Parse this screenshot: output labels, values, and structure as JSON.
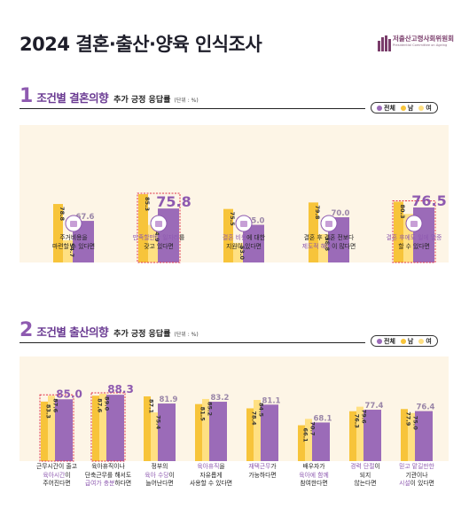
{
  "page_title": "2024 결혼·출산·양육 인식조사",
  "logo": {
    "org": "저출산고령사회위원회",
    "sub": "Presidential Committee on Ageing Society and Population Policy"
  },
  "colors": {
    "all": "#9b6bb8",
    "male": "#f7c43a",
    "female": "#ffe082",
    "band": "#fdf5e6",
    "accent": "#8e5ab0"
  },
  "legend": {
    "all": "전체",
    "male": "남",
    "female": "여"
  },
  "sections": [
    {
      "num": "1",
      "main": "조건별 결혼의향",
      "sub": "추가 긍정 응답률",
      "unit": "(단위 : %)",
      "captions": [
        {
          "icon": "house-icon",
          "lines": [
            [
              "",
              "주거비용을"
            ],
            [
              "",
              "마련할 수 있다면"
            ]
          ],
          "hl_line": 0
        },
        {
          "icon": "briefcase-icon",
          "lines": [
            [
              "만족할만한 일자리",
              "를"
            ],
            [
              "",
              "갖고 있다면"
            ]
          ],
          "hl_line": 0
        },
        {
          "icon": "rings-icon",
          "lines": [
            [
              "결혼 비용",
              "에 대한"
            ],
            [
              "",
              "지원이 있다면"
            ]
          ],
          "hl_line": 0
        },
        {
          "icon": "document-icon",
          "lines": [
            [
              "",
              "결혼 후 결혼 전보다"
            ],
            [
              "제도적 혜택",
              "이 많다면"
            ]
          ],
          "hl_line": 1
        },
        {
          "icon": "family-icon",
          "lines": [
            [
              "결혼 후에도 일에 열중",
              ""
            ],
            [
              "",
              "할 수 있다면"
            ]
          ],
          "hl_line": 0
        }
      ]
    },
    {
      "num": "2",
      "main": "조건별 출산의향",
      "sub": "추가 긍정 응답률",
      "unit": "(단위 : %)",
      "captions": [
        {
          "lines": [
            [
              "",
              "근무시간이 줄고"
            ],
            [
              "육아시간",
              "이"
            ],
            [
              "",
              "주어진다면"
            ]
          ]
        },
        {
          "lines": [
            [
              "",
              "육아휴직이나"
            ],
            [
              "",
              "단축근무를 해서도"
            ],
            [
              "급여가 충분",
              "하다면"
            ]
          ]
        },
        {
          "lines": [
            [
              "",
              "정부의"
            ],
            [
              "육아 수당",
              "이"
            ],
            [
              "",
              "늘어난다면"
            ]
          ]
        },
        {
          "lines": [
            [
              "육아휴직",
              "을"
            ],
            [
              "",
              "자유롭게"
            ],
            [
              "",
              "사용할 수 있다면"
            ]
          ]
        },
        {
          "lines": [
            [
              "재택근무",
              "가"
            ],
            [
              "",
              "가능하다면"
            ]
          ]
        },
        {
          "lines": [
            [
              "",
              "배우자가"
            ],
            [
              "육아에 함께",
              ""
            ],
            [
              "",
              "참여한다면"
            ]
          ]
        },
        {
          "lines": [
            [
              "경력 단절",
              "이"
            ],
            [
              "",
              "되지"
            ],
            [
              "",
              "않는다면"
            ]
          ]
        },
        {
          "lines": [
            [
              "믿고 맡길만한",
              ""
            ],
            [
              "",
              "기관이나"
            ],
            [
              "시설",
              "이 있다면"
            ]
          ]
        }
      ]
    }
  ],
  "chart_data": [
    {
      "type": "bar",
      "title": "조건별 결혼의향 추가 긍정 응답률",
      "unit": "%",
      "categories": [
        "주거비용을 마련할 수 있다면",
        "만족할만한 일자리를 갖고 있다면",
        "결혼 비용에 대한 지원이 있다면",
        "결혼 후 결혼 전보다 제도적 혜택이 많다면",
        "결혼 후에도 일에 열중할 수 있다면"
      ],
      "series": [
        {
          "name": "남",
          "values": [
            78.8,
            85.3,
            75.5,
            79.8,
            80.3
          ]
        },
        {
          "name": "여",
          "values": [
            54.7,
            64.9,
            53.0,
            58.8,
            72.2
          ]
        },
        {
          "name": "전체",
          "values": [
            67.6,
            75.8,
            65.0,
            70.0,
            76.5
          ]
        }
      ],
      "highlighted": [
        1,
        4
      ],
      "ylim": [
        0,
        90
      ]
    },
    {
      "type": "bar",
      "title": "조건별 출산의향 추가 긍정 응답률",
      "unit": "%",
      "categories": [
        "근무시간이 줄고 육아시간이 주어진다면",
        "육아휴직이나 단축근무를 해서도 급여가 충분하다면",
        "정부의 육아 수당이 늘어난다면",
        "육아휴직을 자유롭게 사용할 수 있다면",
        "재택근무가 가능하다면",
        "배우자가 육아에 함께 참여한다면",
        "경력 단절이 되지 않는다면",
        "믿고 맡길만한 기관이나 시설이 있다면"
      ],
      "series": [
        {
          "name": "남",
          "values": [
            83.3,
            87.6,
            87.1,
            81.5,
            78.4,
            66.1,
            76.3,
            77.9
          ]
        },
        {
          "name": "여",
          "values": [
            87.6,
            89.0,
            75.4,
            85.2,
            84.5,
            70.7,
            79.6,
            75.0
          ]
        },
        {
          "name": "전체",
          "values": [
            85.0,
            88.3,
            81.9,
            83.2,
            81.1,
            68.1,
            77.4,
            76.4
          ]
        }
      ],
      "highlighted": [
        0,
        1
      ],
      "ylim": [
        0,
        95
      ]
    }
  ]
}
